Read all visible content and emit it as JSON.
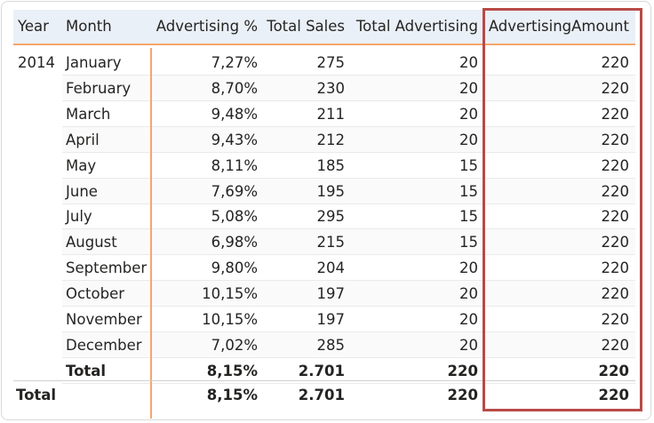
{
  "headers": {
    "year": "Year",
    "month": "Month",
    "adv_pct": "Advertising %",
    "total_sales": "Total Sales",
    "total_adv": "Total Advertising",
    "adv_amount": "AdvertisingAmount"
  },
  "year_value": "2014",
  "rows": [
    {
      "month": "January",
      "adv_pct": "7,27%",
      "total_sales": "275",
      "total_adv": "20",
      "adv_amount": "220"
    },
    {
      "month": "February",
      "adv_pct": "8,70%",
      "total_sales": "230",
      "total_adv": "20",
      "adv_amount": "220"
    },
    {
      "month": "March",
      "adv_pct": "9,48%",
      "total_sales": "211",
      "total_adv": "20",
      "adv_amount": "220"
    },
    {
      "month": "April",
      "adv_pct": "9,43%",
      "total_sales": "212",
      "total_adv": "20",
      "adv_amount": "220"
    },
    {
      "month": "May",
      "adv_pct": "8,11%",
      "total_sales": "185",
      "total_adv": "15",
      "adv_amount": "220"
    },
    {
      "month": "June",
      "adv_pct": "7,69%",
      "total_sales": "195",
      "total_adv": "15",
      "adv_amount": "220"
    },
    {
      "month": "July",
      "adv_pct": "5,08%",
      "total_sales": "295",
      "total_adv": "15",
      "adv_amount": "220"
    },
    {
      "month": "August",
      "adv_pct": "6,98%",
      "total_sales": "215",
      "total_adv": "15",
      "adv_amount": "220"
    },
    {
      "month": "September",
      "adv_pct": "9,80%",
      "total_sales": "204",
      "total_adv": "20",
      "adv_amount": "220"
    },
    {
      "month": "October",
      "adv_pct": "10,15%",
      "total_sales": "197",
      "total_adv": "20",
      "adv_amount": "220"
    },
    {
      "month": "November",
      "adv_pct": "10,15%",
      "total_sales": "197",
      "total_adv": "20",
      "adv_amount": "220"
    },
    {
      "month": "December",
      "adv_pct": "7,02%",
      "total_sales": "285",
      "total_adv": "20",
      "adv_amount": "220"
    }
  ],
  "subtotal": {
    "label": "Total",
    "adv_pct": "8,15%",
    "total_sales": "2.701",
    "total_adv": "220",
    "adv_amount": "220"
  },
  "grand_total": {
    "label": "Total",
    "adv_pct": "8,15%",
    "total_sales": "2.701",
    "total_adv": "220",
    "adv_amount": "220"
  },
  "colors": {
    "header_bg": "#eaf0f7",
    "accent": "#f5a66a",
    "highlight": "#b84a47"
  }
}
